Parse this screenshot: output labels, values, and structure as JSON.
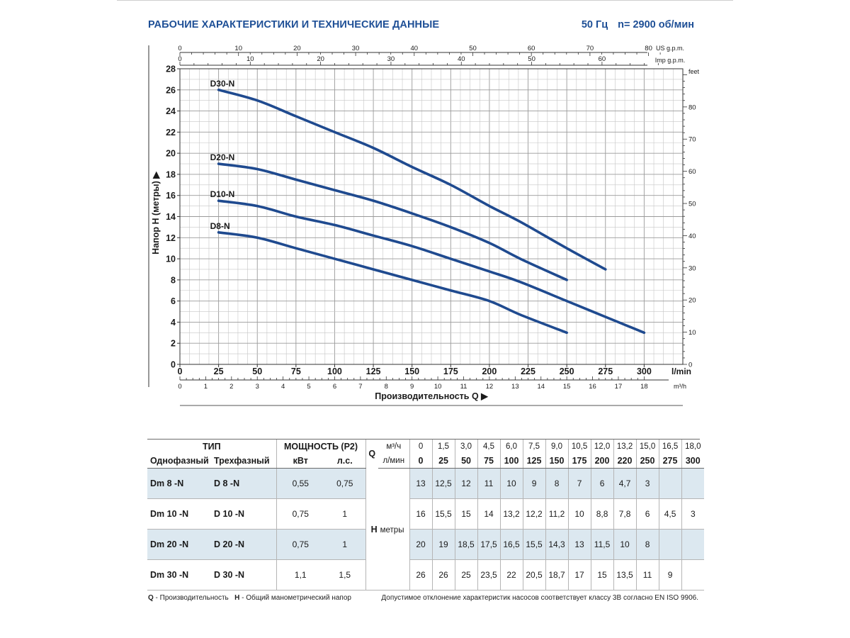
{
  "header": {
    "title": "РАБОЧИЕ ХАРАКТЕРИСТИКИ И ТЕХНИЧЕСКИЕ ДАННЫЕ",
    "frequency": "50 Гц",
    "speed": "n= 2900 об/мин"
  },
  "chart_data": {
    "type": "line",
    "title": "",
    "xlabel": "Производительность Q",
    "ylabel": "Напор H (метры)",
    "xlim": [
      0,
      325
    ],
    "ylim": [
      0,
      28
    ],
    "grid": true,
    "x_unit": "l/min",
    "x_ticks": [
      0,
      25,
      50,
      75,
      100,
      125,
      150,
      175,
      200,
      225,
      250,
      275,
      300
    ],
    "x_ticks_display": [
      "0",
      "25",
      "50",
      "75",
      "100",
      "125",
      "150",
      "175",
      "200",
      "225",
      "250",
      "275",
      "300"
    ],
    "y_ticks": [
      0,
      2,
      4,
      6,
      8,
      10,
      12,
      14,
      16,
      18,
      20,
      22,
      24,
      26,
      28
    ],
    "y_ticks_display": [
      "0",
      "2",
      "4",
      "6",
      "8",
      "10",
      "12",
      "14",
      "16",
      "18",
      "20",
      "22",
      "24",
      "26",
      "28"
    ],
    "secondary_axes": {
      "us_gpm": {
        "label": "US g.p.m.",
        "ticks": [
          0,
          10,
          20,
          30,
          40,
          50,
          60,
          70,
          80
        ],
        "ticks_display": [
          "0",
          "10",
          "20",
          "30",
          "40",
          "50",
          "60",
          "70",
          "80"
        ]
      },
      "imp_gpm": {
        "label": "Imp g.p.m.",
        "ticks": [
          0,
          10,
          20,
          30,
          40,
          50,
          60
        ],
        "ticks_display": [
          "0",
          "10",
          "20",
          "30",
          "40",
          "50",
          "60"
        ]
      },
      "m3h": {
        "label": "m³/h",
        "ticks": [
          0,
          1,
          2,
          3,
          4,
          5,
          6,
          7,
          8,
          9,
          10,
          11,
          12,
          13,
          14,
          15,
          16,
          17,
          18
        ],
        "ticks_display": [
          "0",
          "1",
          "2",
          "3",
          "4",
          "5",
          "6",
          "7",
          "8",
          "9",
          "10",
          "11",
          "12",
          "13",
          "14",
          "15",
          "16",
          "17",
          "18"
        ]
      },
      "feet": {
        "label": "feet",
        "ticks": [
          0,
          10,
          20,
          30,
          40,
          50,
          60,
          70,
          80
        ],
        "ticks_display": [
          "0",
          "10",
          "20",
          "30",
          "40",
          "50",
          "60",
          "70",
          "80"
        ]
      }
    },
    "series": [
      {
        "name": "D30-N",
        "x": [
          25,
          50,
          75,
          100,
          125,
          150,
          175,
          200,
          220,
          250,
          275
        ],
        "y": [
          26,
          25,
          23.5,
          22,
          20.5,
          18.7,
          17,
          15,
          13.5,
          11,
          9
        ]
      },
      {
        "name": "D20-N",
        "x": [
          25,
          50,
          75,
          100,
          125,
          150,
          175,
          200,
          220,
          250
        ],
        "y": [
          19,
          18.5,
          17.5,
          16.5,
          15.5,
          14.3,
          13,
          11.5,
          10,
          8
        ]
      },
      {
        "name": "D10-N",
        "x": [
          25,
          50,
          75,
          100,
          125,
          150,
          175,
          200,
          220,
          250,
          275,
          300
        ],
        "y": [
          15.5,
          15,
          14,
          13.2,
          12.2,
          11.2,
          10,
          8.8,
          7.8,
          6,
          4.5,
          3
        ]
      },
      {
        "name": "D8-N",
        "x": [
          25,
          50,
          75,
          100,
          125,
          150,
          175,
          200,
          220,
          250
        ],
        "y": [
          12.5,
          12,
          11,
          10,
          9,
          8,
          7,
          6,
          4.7,
          3
        ]
      }
    ],
    "colors": {
      "curve": "#1f4a8f",
      "grid": "#b0b0b0",
      "axis": "#333333"
    }
  },
  "table": {
    "type_header": "ТИП",
    "power_header": "МОЩНОСТЬ (P2)",
    "single_phase": "Однофазный",
    "three_phase": "Трехфазный",
    "kw": "кВт",
    "hp": "л.с.",
    "q_label": "Q",
    "q_unit_m3": "м³/ч",
    "q_unit_lmin": "л/мин",
    "q_m3h": [
      "0",
      "1,5",
      "3,0",
      "4,5",
      "6,0",
      "7,5",
      "9,0",
      "10,5",
      "12,0",
      "13,2",
      "15,0",
      "16,5",
      "18,0"
    ],
    "q_lmin": [
      "0",
      "25",
      "50",
      "75",
      "100",
      "125",
      "150",
      "175",
      "200",
      "220",
      "250",
      "275",
      "300"
    ],
    "h_label": "H",
    "h_unit": "метры",
    "rows": [
      {
        "single": "Dm 8   -N",
        "three": "D 8   -N",
        "kw": "0,55",
        "hp": "0,75",
        "h": [
          "13",
          "12,5",
          "12",
          "11",
          "10",
          "9",
          "8",
          "7",
          "6",
          "4,7",
          "3",
          "",
          ""
        ]
      },
      {
        "single": "Dm 10 -N",
        "three": "D 10 -N",
        "kw": "0,75",
        "hp": "1",
        "h": [
          "16",
          "15,5",
          "15",
          "14",
          "13,2",
          "12,2",
          "11,2",
          "10",
          "8,8",
          "7,8",
          "6",
          "4,5",
          "3"
        ]
      },
      {
        "single": "Dm 20 -N",
        "three": "D 20 -N",
        "kw": "0,75",
        "hp": "1",
        "h": [
          "20",
          "19",
          "18,5",
          "17,5",
          "16,5",
          "15,5",
          "14,3",
          "13",
          "11,5",
          "10",
          "8",
          "",
          ""
        ]
      },
      {
        "single": "Dm 30 -N",
        "three": "D 30 -N",
        "kw": "1,1",
        "hp": "1,5",
        "h": [
          "26",
          "26",
          "25",
          "23,5",
          "22",
          "20,5",
          "18,7",
          "17",
          "15",
          "13,5",
          "11",
          "9",
          ""
        ]
      }
    ]
  },
  "footnotes": {
    "q_key": "Q",
    "q_text": " - Производительность",
    "h_key": "H",
    "h_text": " - Общий манометрический напор",
    "tolerance": "Допустимое отклонение характеристик насосов соответствует классу 3В согласно EN ISO 9906."
  }
}
